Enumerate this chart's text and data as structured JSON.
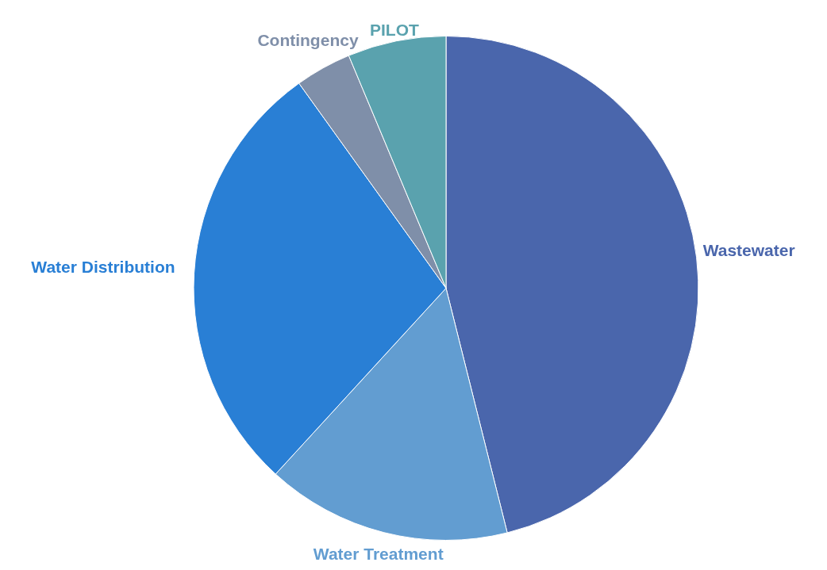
{
  "chart_data": {
    "type": "pie",
    "categories": [
      "Wastewater",
      "Water Treatment",
      "Water Distribution",
      "Contingency",
      "PILOT"
    ],
    "values": [
      46.1,
      15.7,
      28.3,
      3.6,
      6.3
    ],
    "colors": [
      "#4a66ac",
      "#629dd1",
      "#297fd5",
      "#7f8fa9",
      "#5aa2ae"
    ]
  }
}
